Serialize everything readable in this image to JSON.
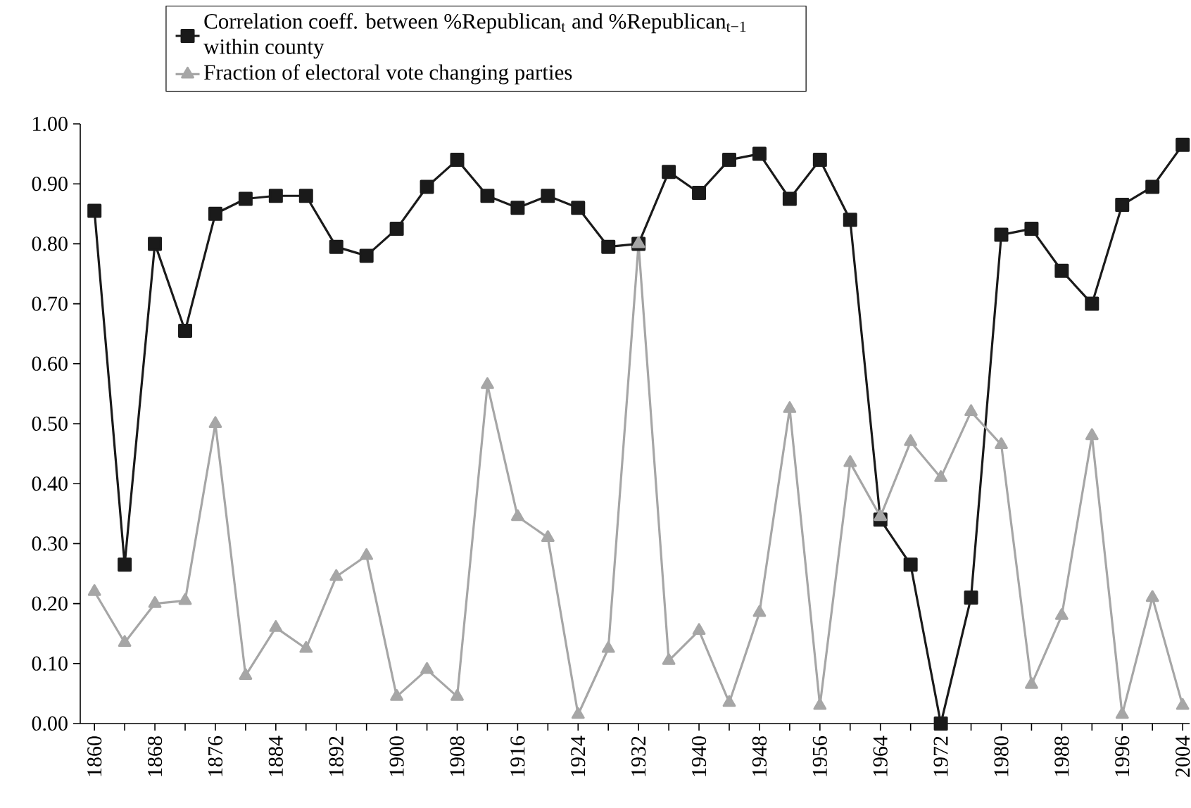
{
  "chart_data": {
    "type": "line",
    "categories": [
      "1860",
      null,
      "1868",
      null,
      "1876",
      null,
      "1884",
      null,
      "1892",
      null,
      "1900",
      null,
      "1908",
      null,
      "1916",
      null,
      "1924",
      null,
      "1932",
      null,
      "1940",
      null,
      "1948",
      null,
      "1956",
      null,
      "1964",
      null,
      "1972",
      null,
      "1980",
      null,
      "1988",
      null,
      "1996",
      null,
      "2004"
    ],
    "series": [
      {
        "name": "Correlation coeff. between %Republican$_{t}$ and %Republican$_{t−1}$ within county",
        "color": "#1a1a1a",
        "marker": "square",
        "values": [
          0.855,
          0.265,
          0.8,
          0.655,
          0.85,
          0.875,
          0.88,
          0.88,
          0.795,
          0.78,
          0.825,
          0.895,
          0.94,
          0.88,
          0.86,
          0.88,
          0.86,
          0.795,
          0.8,
          0.92,
          0.885,
          0.94,
          0.95,
          0.875,
          0.94,
          0.84,
          0.34,
          0.265,
          0.0,
          0.21,
          0.815,
          0.825,
          0.755,
          0.7,
          0.865,
          0.895,
          0.965
        ]
      },
      {
        "name": "Fraction of electoral vote changing parties",
        "color": "#a6a6a6",
        "marker": "triangle",
        "values": [
          0.22,
          0.135,
          0.2,
          0.205,
          0.5,
          0.08,
          0.16,
          0.125,
          0.245,
          0.28,
          0.045,
          0.09,
          0.045,
          0.565,
          0.345,
          0.31,
          0.015,
          0.125,
          0.8,
          0.105,
          0.155,
          0.035,
          0.185,
          0.525,
          0.03,
          0.435,
          0.345,
          0.47,
          0.41,
          0.52,
          0.465,
          0.065,
          0.18,
          0.48,
          0.015,
          0.21,
          0.03
        ]
      }
    ],
    "ylim": [
      0,
      1
    ],
    "yticks": [
      {
        "value": 0,
        "label": "0.00"
      },
      {
        "value": 0.1,
        "label": "0.10"
      },
      {
        "value": 0.2,
        "label": "0.20"
      },
      {
        "value": 0.3,
        "label": "0.30"
      },
      {
        "value": 0.4,
        "label": "0.40"
      },
      {
        "value": 0.5,
        "label": "0.50"
      },
      {
        "value": 0.6,
        "label": "0.60"
      },
      {
        "value": 0.7,
        "label": "0.70"
      },
      {
        "value": 0.8,
        "label": "0.80"
      },
      {
        "value": 0.9,
        "label": "0.90"
      },
      {
        "value": 1,
        "label": "1.00"
      }
    ],
    "legend": "top left",
    "line_style": "solid"
  }
}
